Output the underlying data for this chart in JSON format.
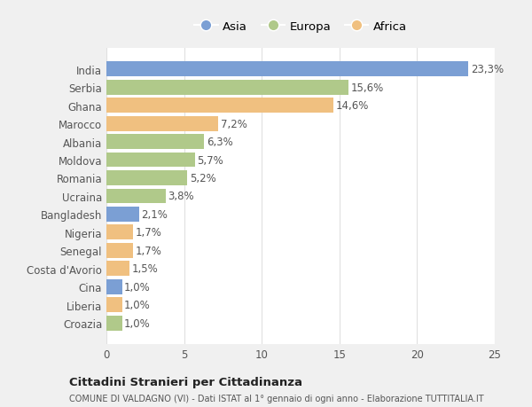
{
  "countries": [
    "India",
    "Serbia",
    "Ghana",
    "Marocco",
    "Albania",
    "Moldova",
    "Romania",
    "Ucraina",
    "Bangladesh",
    "Nigeria",
    "Senegal",
    "Costa d'Avorio",
    "Cina",
    "Liberia",
    "Croazia"
  ],
  "values": [
    23.3,
    15.6,
    14.6,
    7.2,
    6.3,
    5.7,
    5.2,
    3.8,
    2.1,
    1.7,
    1.7,
    1.5,
    1.0,
    1.0,
    1.0
  ],
  "labels": [
    "23,3%",
    "15,6%",
    "14,6%",
    "7,2%",
    "6,3%",
    "5,7%",
    "5,2%",
    "3,8%",
    "2,1%",
    "1,7%",
    "1,7%",
    "1,5%",
    "1,0%",
    "1,0%",
    "1,0%"
  ],
  "continents": [
    "Asia",
    "Europa",
    "Africa",
    "Africa",
    "Europa",
    "Europa",
    "Europa",
    "Europa",
    "Asia",
    "Africa",
    "Africa",
    "Africa",
    "Asia",
    "Africa",
    "Europa"
  ],
  "colors": {
    "Asia": "#7b9fd4",
    "Europa": "#b0c98a",
    "Africa": "#f0c080"
  },
  "legend_labels": [
    "Asia",
    "Europa",
    "Africa"
  ],
  "legend_colors": [
    "#7b9fd4",
    "#b0c98a",
    "#f0c080"
  ],
  "title": "Cittadini Stranieri per Cittadinanza",
  "subtitle": "COMUNE DI VALDAGNO (VI) - Dati ISTAT al 1° gennaio di ogni anno - Elaborazione TUTTITALIA.IT",
  "xlim": [
    0,
    25
  ],
  "xticks": [
    0,
    5,
    10,
    15,
    20,
    25
  ],
  "background_color": "#f0f0f0",
  "plot_bg_color": "#ffffff",
  "grid_color": "#e0e0e0",
  "text_color": "#555555",
  "label_fontsize": 8.5,
  "tick_fontsize": 8.5,
  "bar_height": 0.82
}
